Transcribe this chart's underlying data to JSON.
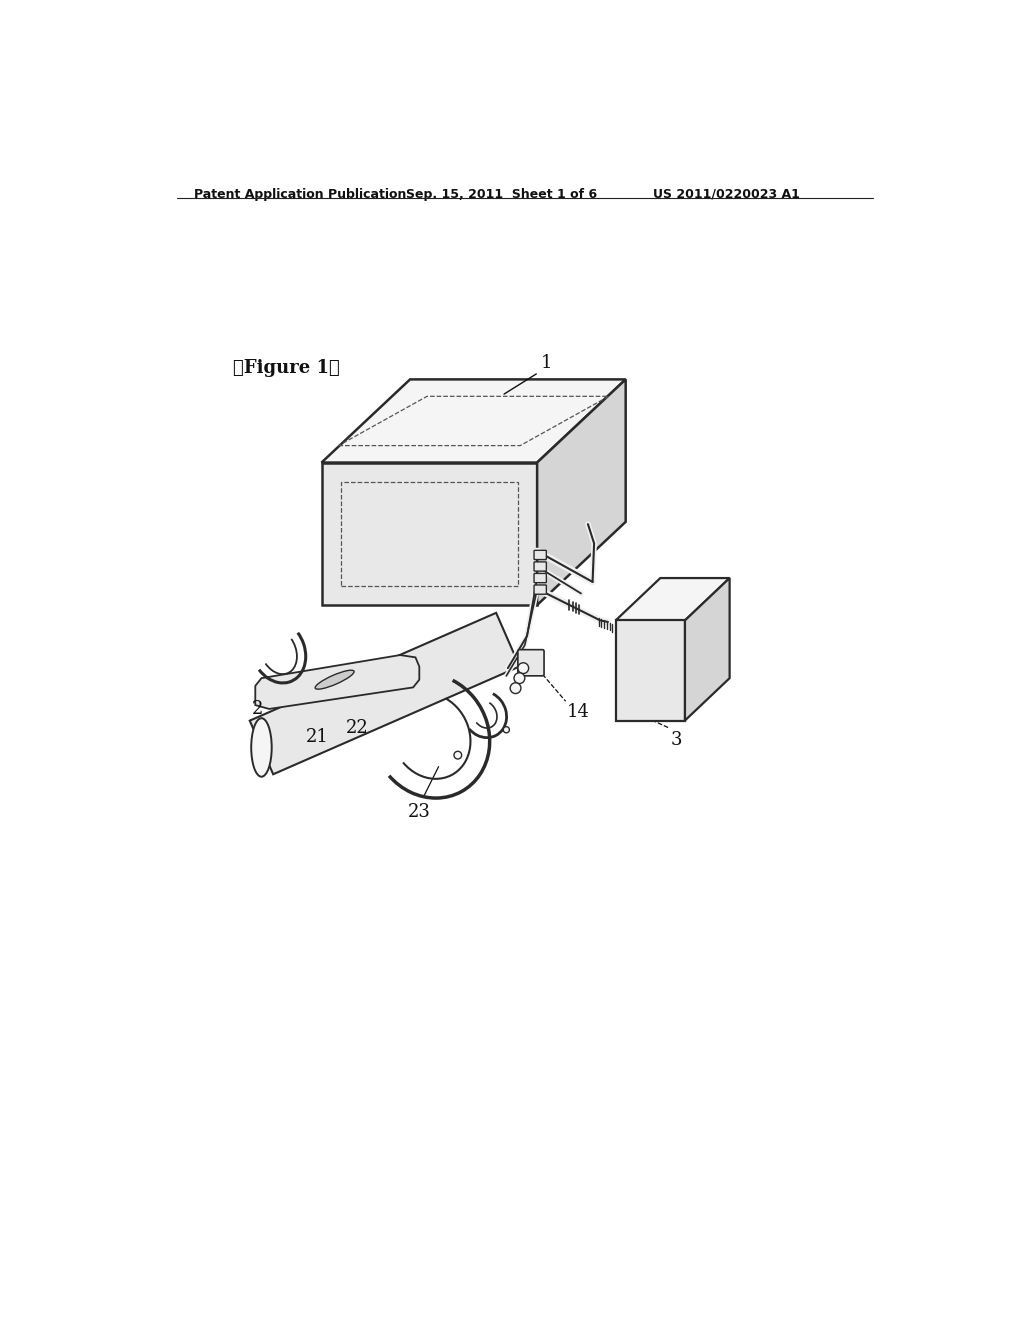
{
  "background_color": "#ffffff",
  "header_left": "Patent Application Publication",
  "header_center": "Sep. 15, 2011  Sheet 1 of 6",
  "header_right": "US 2011/0220023 A1",
  "figure_label": "【Figure 1】",
  "label_1": "1",
  "label_2": "2",
  "label_3": "3",
  "label_14": "14",
  "label_21": "21",
  "label_22": "22",
  "label_23": "23",
  "line_color": "#2a2a2a",
  "dashed_color": "#555555",
  "text_color": "#111111",
  "fill_light": "#f5f5f5",
  "fill_mid": "#e8e8e8",
  "fill_dark": "#d5d5d5"
}
